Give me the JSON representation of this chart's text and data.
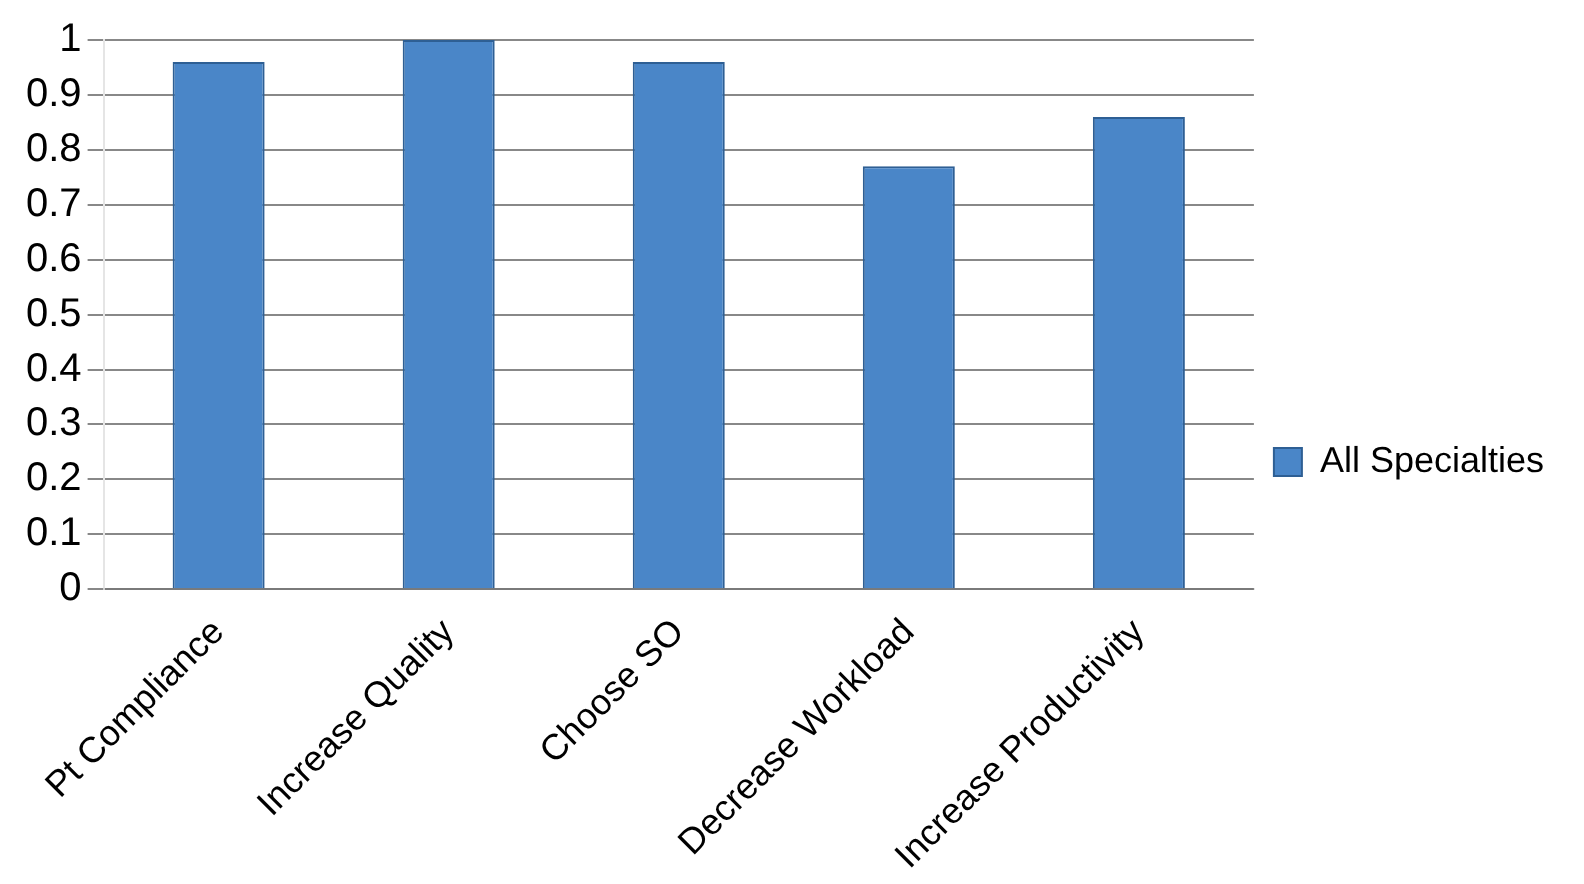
{
  "chart_data": {
    "type": "bar",
    "categories": [
      "Pt Compliance",
      "Increase Quality",
      "Choose SO",
      "Decrease Workload",
      "Increase Productivity"
    ],
    "series": [
      {
        "name": "All Specialties",
        "color": "#4a86c8",
        "values": [
          0.96,
          1.0,
          0.96,
          0.77,
          0.86
        ]
      }
    ],
    "ylim": [
      0,
      1
    ],
    "yticks": [
      0,
      0.1,
      0.2,
      0.3,
      0.4,
      0.5,
      0.6,
      0.7,
      0.8,
      0.9,
      1
    ],
    "grid": "y",
    "legend": "right"
  }
}
